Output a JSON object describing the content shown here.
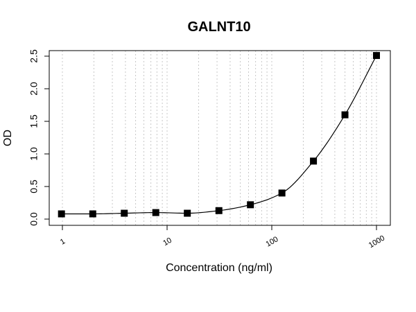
{
  "chart_data": {
    "type": "scatter",
    "title": "GALNT10",
    "xlabel": "Concentration (ng/ml)",
    "ylabel": "OD",
    "x_scale": "log",
    "xlim": [
      1,
      1000
    ],
    "ylim": [
      0,
      2.5
    ],
    "x_ticks": [
      1,
      10,
      100,
      1000
    ],
    "x_tick_labels": [
      "1",
      "10",
      "100",
      "1000"
    ],
    "y_ticks": [
      0,
      0.5,
      1.0,
      1.5,
      2.0,
      2.5
    ],
    "y_tick_labels": [
      "0.0",
      "0.5",
      "1.0",
      "1.5",
      "2.0",
      "2.5"
    ],
    "grid": "vertical dotted at log minor ticks",
    "marker": "filled-square",
    "fit_curve": true,
    "series": [
      {
        "x": [
          0.98,
          1.95,
          3.9,
          7.8,
          15.6,
          31.25,
          62.5,
          125,
          250,
          500,
          1000
        ],
        "y": [
          0.08,
          0.08,
          0.09,
          0.1,
          0.09,
          0.13,
          0.22,
          0.4,
          0.89,
          1.6,
          2.51
        ]
      }
    ]
  }
}
